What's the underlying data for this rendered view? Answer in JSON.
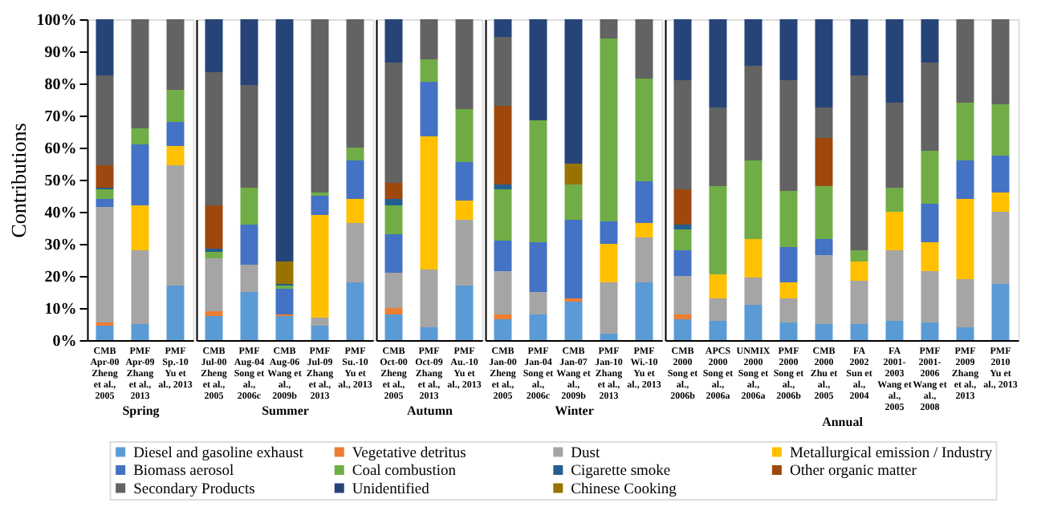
{
  "chart_data": [
    {
      "type": "bar",
      "stacked": true,
      "xlabel": "Spring",
      "ylabel": "Contributions",
      "legend": "bottom",
      "categories": [
        "CMB\nApr-00\nZheng\net al.,\n2005",
        "PMF\nApr-09\nZhang\net al.,\n2013",
        "PMF\nSp.-10\nYu et\nal., 2013"
      ],
      "ylim": [
        0,
        100
      ],
      "yticks": [
        {
          "value": 0,
          "label": "0%"
        },
        {
          "value": 10,
          "label": "10%"
        },
        {
          "value": 20,
          "label": "20%"
        },
        {
          "value": 30,
          "label": "30%"
        },
        {
          "value": 40,
          "label": "40%"
        },
        {
          "value": 50,
          "label": "50%"
        },
        {
          "value": 60,
          "label": "60%"
        },
        {
          "value": 70,
          "label": "70%"
        },
        {
          "value": 80,
          "label": "80%"
        },
        {
          "value": 90,
          "label": "90%"
        },
        {
          "value": 100,
          "label": "100%"
        }
      ],
      "series": [
        {
          "name": "Diesel and gasoline exhaust",
          "color": "#5b9bd5",
          "values": [
            4.5,
            5,
            17
          ]
        },
        {
          "name": "Vegetative detritus",
          "color": "#ed7d31",
          "values": [
            1,
            null,
            null
          ]
        },
        {
          "name": "Dust",
          "color": "#a5a5a5",
          "values": [
            36,
            23,
            37.5
          ]
        },
        {
          "name": "Metallurgical emission / Industry",
          "color": "#ffc000",
          "values": [
            null,
            14,
            6
          ]
        },
        {
          "name": "Biomass aerosol",
          "color": "#4472c4",
          "values": [
            2.5,
            19,
            7.5
          ]
        },
        {
          "name": "Coal combustion",
          "color": "#70ad47",
          "values": [
            3,
            5,
            10
          ]
        },
        {
          "name": "Cigarette smoke",
          "color": "#255e91",
          "values": [
            0.5,
            null,
            null
          ]
        },
        {
          "name": "Other organic matter",
          "color": "#9e480e",
          "values": [
            7,
            null,
            null
          ]
        },
        {
          "name": "Secondary Products",
          "color": "#636363",
          "values": [
            28,
            34,
            22
          ]
        },
        {
          "name": "Unidentified",
          "color": "#264478",
          "values": [
            17.5,
            null,
            null
          ]
        }
      ]
    },
    {
      "type": "bar",
      "stacked": true,
      "xlabel": "Summer",
      "tick_labels": "x",
      "categories": [
        "CMB\nJul-00\nZheng\net al.,\n2005",
        "PMF\nAug-04\nSong et\nal.,\n2006c",
        "CMB\nAug-06\nWang et\nal.,\n2009b",
        "PMF\nJul-09\nZhang\net al.,\n2013",
        "PMF\nSu.-10\nYu et\nal., 2013"
      ],
      "ylim": [
        0,
        100
      ],
      "series": [
        {
          "name": "Diesel and gasoline exhaust",
          "color": "#5b9bd5",
          "values": [
            7.5,
            15,
            7.5,
            4.5,
            18
          ]
        },
        {
          "name": "Vegetative detritus",
          "color": "#ed7d31",
          "values": [
            1.5,
            null,
            0.5,
            null,
            null
          ]
        },
        {
          "name": "Dust",
          "color": "#a5a5a5",
          "values": [
            16.5,
            8.5,
            null,
            2.5,
            18.5
          ]
        },
        {
          "name": "Metallurgical emission / Industry",
          "color": "#ffc000",
          "values": [
            null,
            null,
            null,
            32,
            7.5
          ]
        },
        {
          "name": "Biomass aerosol",
          "color": "#4472c4",
          "values": [
            null,
            12.5,
            8,
            6,
            12
          ]
        },
        {
          "name": "Coal combustion",
          "color": "#70ad47",
          "values": [
            2,
            11.5,
            1,
            1,
            4
          ]
        },
        {
          "name": "Cigarette smoke",
          "color": "#255e91",
          "values": [
            1,
            null,
            0.5,
            null,
            null
          ]
        },
        {
          "name": "Other organic matter",
          "color": "#9e480e",
          "values": [
            13.5,
            null,
            null,
            null,
            null
          ]
        },
        {
          "name": "Secondary Products",
          "color": "#636363",
          "values": [
            41.5,
            32,
            null,
            54,
            40
          ]
        },
        {
          "name": "Chinese Cooking",
          "color": "#997300",
          "values": [
            null,
            null,
            7,
            null,
            null
          ]
        },
        {
          "name": "Unidentified",
          "color": "#264478",
          "values": [
            16.5,
            20.5,
            75.5,
            null,
            null
          ]
        }
      ]
    },
    {
      "type": "bar",
      "stacked": true,
      "xlabel": "Autumn",
      "tick_labels": "x",
      "categories": [
        "CMB\nOct-00\nZheng\net al.,\n2005",
        "PMF\nOct-09\nZhang\net al.,\n2013",
        "PMF\nAu.-10\nYu et\nal., 2013"
      ],
      "ylim": [
        0,
        100
      ],
      "series": [
        {
          "name": "Diesel and gasoline exhaust",
          "color": "#5b9bd5",
          "values": [
            8,
            4,
            17
          ]
        },
        {
          "name": "Vegetative detritus",
          "color": "#ed7d31",
          "values": [
            2,
            null,
            null
          ]
        },
        {
          "name": "Dust",
          "color": "#a5a5a5",
          "values": [
            11,
            18,
            20.5
          ]
        },
        {
          "name": "Metallurgical emission / Industry",
          "color": "#ffc000",
          "values": [
            null,
            41.5,
            6
          ]
        },
        {
          "name": "Biomass aerosol",
          "color": "#4472c4",
          "values": [
            12,
            17,
            12
          ]
        },
        {
          "name": "Coal combustion",
          "color": "#70ad47",
          "values": [
            9,
            7,
            16.5
          ]
        },
        {
          "name": "Cigarette smoke",
          "color": "#255e91",
          "values": [
            2,
            null,
            null
          ]
        },
        {
          "name": "Other organic matter",
          "color": "#9e480e",
          "values": [
            5,
            null,
            null
          ]
        },
        {
          "name": "Secondary Products",
          "color": "#636363",
          "values": [
            37.5,
            12.5,
            28
          ]
        },
        {
          "name": "Unidentified",
          "color": "#264478",
          "values": [
            13.5,
            null,
            null
          ]
        }
      ]
    },
    {
      "type": "bar",
      "stacked": true,
      "xlabel": "Winter",
      "tick_labels": "x",
      "categories": [
        "CMB\nJan-00\nZheng\net al.,\n2005",
        "PMF\nJan-04\nSong et\nal.,\n2006c",
        "CMB\nJan-07\nWang et\nal.,\n2009b",
        "PMF\nJan-10\nZhang\net al.,\n2013",
        "PMF\nWi.-10\nYu et\nal., 2013"
      ],
      "ylim": [
        0,
        100
      ],
      "series": [
        {
          "name": "Diesel and gasoline exhaust",
          "color": "#5b9bd5",
          "values": [
            6.5,
            8,
            12,
            2,
            18
          ]
        },
        {
          "name": "Vegetative detritus",
          "color": "#ed7d31",
          "values": [
            1.5,
            null,
            1,
            null,
            null
          ]
        },
        {
          "name": "Dust",
          "color": "#a5a5a5",
          "values": [
            13.5,
            7,
            null,
            16,
            14
          ]
        },
        {
          "name": "Metallurgical emission / Industry",
          "color": "#ffc000",
          "values": [
            null,
            null,
            null,
            12,
            4.5
          ]
        },
        {
          "name": "Biomass aerosol",
          "color": "#4472c4",
          "values": [
            9.5,
            15.5,
            24.5,
            7,
            13
          ]
        },
        {
          "name": "Coal combustion",
          "color": "#70ad47",
          "values": [
            16,
            38,
            11,
            57,
            32
          ]
        },
        {
          "name": "Cigarette smoke",
          "color": "#255e91",
          "values": [
            1.5,
            null,
            null,
            null,
            null
          ]
        },
        {
          "name": "Other organic matter",
          "color": "#9e480e",
          "values": [
            24.5,
            null,
            null,
            null,
            null
          ]
        },
        {
          "name": "Secondary Products",
          "color": "#636363",
          "values": [
            21.5,
            null,
            null,
            6,
            18.5
          ]
        },
        {
          "name": "Chinese Cooking",
          "color": "#997300",
          "values": [
            null,
            null,
            6.5,
            null,
            null
          ]
        },
        {
          "name": "Unidentified",
          "color": "#264478",
          "values": [
            5.5,
            31.5,
            45,
            null,
            null
          ]
        }
      ]
    },
    {
      "type": "bar",
      "stacked": true,
      "xlabel": "Annual",
      "tick_labels": "x",
      "categories": [
        "CMB\n2000\nSong et\nal.,\n2006b",
        "APCS\n2000\nSong et\nal.,\n2006a",
        "UNMIX\n2000\nSong et\nal.,\n2006a",
        "PMF\n2000\nSong et\nal.,\n2006b",
        "CMB\n2000\nZhu et\nal.,\n2005",
        "FA\n2002\nSun et\nal.,\n2004",
        "FA\n2001-\n2003\nWang et\nal.,\n2005",
        "PMF\n2001-\n2006\nWang et\nal.,\n2008",
        "PMF\n2009\nZhang\net al.,\n2013",
        "PMF\n2010\nYu et\nal., 2013"
      ],
      "ylim": [
        0,
        100
      ],
      "series": [
        {
          "name": "Diesel and gasoline exhaust",
          "color": "#5b9bd5",
          "values": [
            6.5,
            6,
            11,
            5.5,
            5,
            5,
            6,
            5.5,
            4,
            17.5
          ]
        },
        {
          "name": "Vegetative detritus",
          "color": "#ed7d31",
          "values": [
            1.5,
            null,
            null,
            null,
            null,
            null,
            null,
            null,
            null,
            null
          ]
        },
        {
          "name": "Dust",
          "color": "#a5a5a5",
          "values": [
            12,
            7,
            8.5,
            7.5,
            21.5,
            13.5,
            22,
            16,
            15,
            22.5
          ]
        },
        {
          "name": "Metallurgical emission / Industry",
          "color": "#ffc000",
          "values": [
            null,
            7.5,
            12,
            5,
            null,
            6,
            12,
            9,
            25,
            6
          ]
        },
        {
          "name": "Biomass aerosol",
          "color": "#4472c4",
          "values": [
            8,
            null,
            null,
            11,
            5,
            null,
            null,
            12,
            12,
            11.5
          ]
        },
        {
          "name": "Coal combustion",
          "color": "#70ad47",
          "values": [
            6.5,
            27.5,
            24.5,
            17.5,
            16.5,
            3.5,
            7.5,
            16.5,
            18,
            16
          ]
        },
        {
          "name": "Cigarette smoke",
          "color": "#255e91",
          "values": [
            1.5,
            null,
            null,
            null,
            null,
            null,
            null,
            null,
            null,
            null
          ]
        },
        {
          "name": "Other organic matter",
          "color": "#9e480e",
          "values": [
            11,
            null,
            null,
            null,
            15,
            null,
            null,
            null,
            null,
            null
          ]
        },
        {
          "name": "Secondary Products",
          "color": "#636363",
          "values": [
            34,
            24.5,
            29.5,
            34.5,
            9.5,
            54.5,
            26.5,
            27.5,
            26,
            26.5
          ]
        },
        {
          "name": "Unidentified",
          "color": "#264478",
          "values": [
            19,
            27.5,
            14.5,
            19,
            27.5,
            17.5,
            26,
            13.5,
            null,
            null
          ]
        }
      ]
    }
  ]
}
